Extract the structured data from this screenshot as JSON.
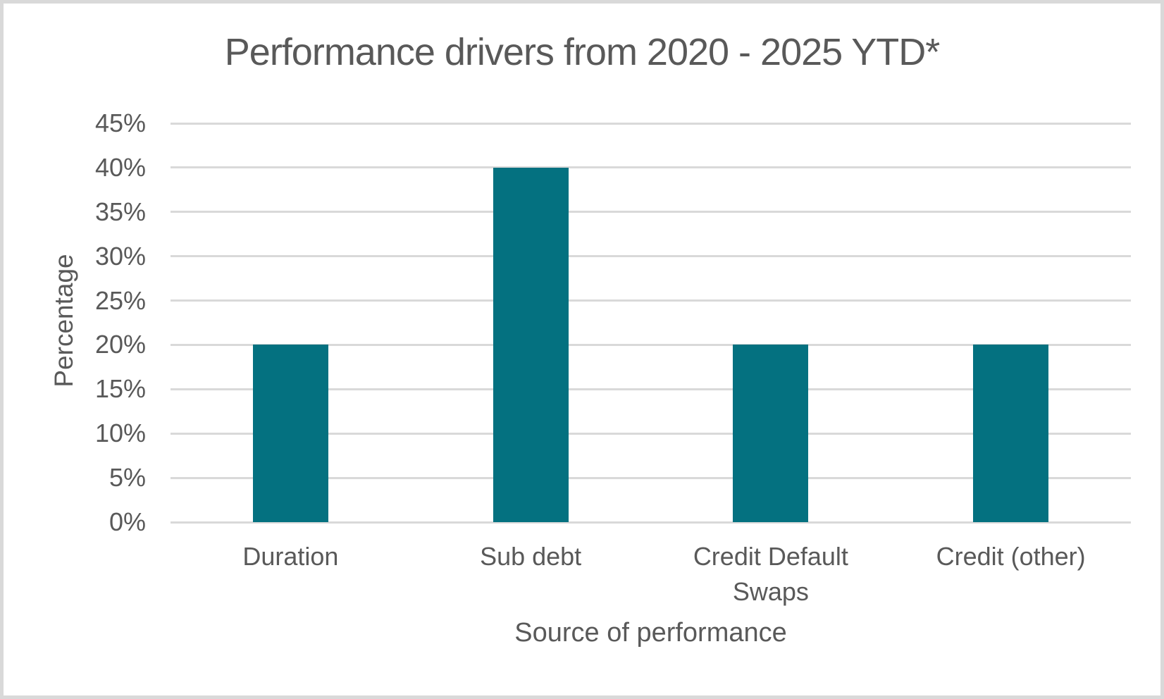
{
  "chart_data": {
    "type": "bar",
    "title": "Performance drivers from 2020 - 2025 YTD*",
    "xlabel": "Source of performance",
    "ylabel": "Percentage",
    "categories": [
      "Duration",
      "Sub debt",
      "Credit Default Swaps",
      "Credit (other)"
    ],
    "values": [
      20,
      40,
      20,
      20
    ],
    "value_unit": "%",
    "ylim": [
      0,
      45
    ],
    "ytick_step": 5,
    "ytick_labels": [
      "45%",
      "40%",
      "35%",
      "30%",
      "25%",
      "20%",
      "15%",
      "10%",
      "5%",
      "0%"
    ],
    "grid": true,
    "legend_position": "none",
    "colors": {
      "bar": "#047180",
      "gridline": "#d9d9d9",
      "text": "#595959",
      "background": "#ffffff",
      "frame_border": "#d9d9d9"
    }
  }
}
